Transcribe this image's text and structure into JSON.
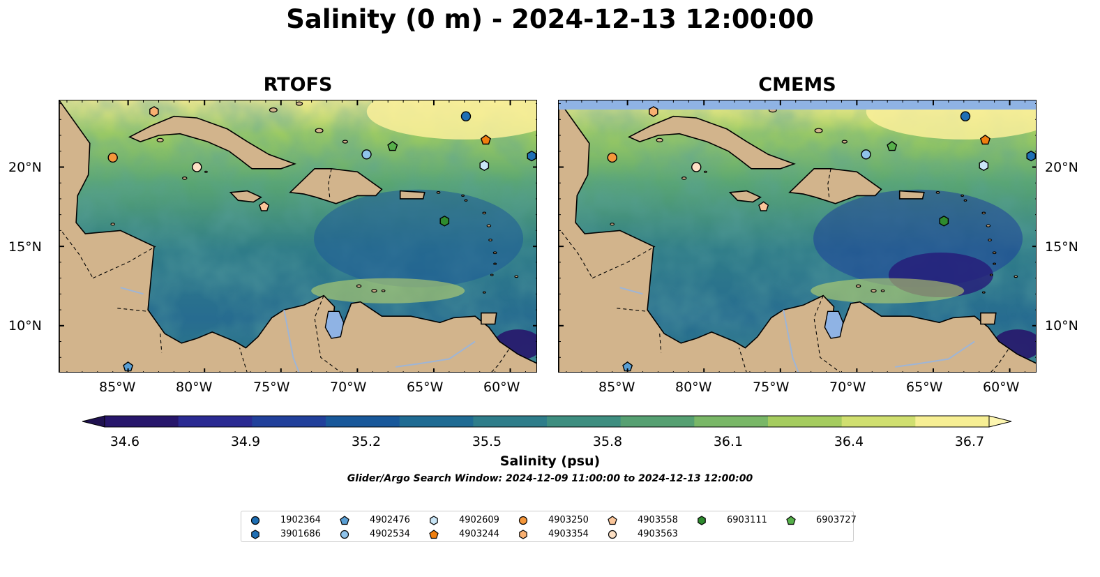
{
  "title": "Salinity (0 m) - 2024-12-13 12:00:00",
  "panels": [
    {
      "title": "RTOFS"
    },
    {
      "title": "CMEMS"
    }
  ],
  "lon_labels": [
    "85°W",
    "80°W",
    "75°W",
    "70°W",
    "65°W",
    "60°W"
  ],
  "lat_labels": [
    "20°N",
    "15°N",
    "10°N"
  ],
  "map_extent": {
    "lon_min": -89.5,
    "lon_max": -58.2,
    "lat_min": 7.0,
    "lat_max": 24.2
  },
  "colorbar": {
    "label": "Salinity (psu)",
    "min": 34.5,
    "max": 36.7,
    "ticks": [
      "34.6",
      "34.9",
      "35.2",
      "35.5",
      "35.8",
      "36.1",
      "36.4",
      "36.7"
    ],
    "colors": [
      "#27166b",
      "#2a2a92",
      "#21409b",
      "#18589a",
      "#1f6b93",
      "#2e7d8a",
      "#3e8e80",
      "#56a072",
      "#79b767",
      "#a5cc5f",
      "#d0df70",
      "#f7ef94"
    ],
    "extend": "both"
  },
  "search_window": "Glider/Argo Search Window: 2024-12-09 11:00:00 to 2024-12-13 12:00:00",
  "colors": {
    "land": "#d2b48c",
    "lake": "#8fb3e4",
    "river": "#9eb5d6",
    "missing": "#8fb3e4"
  },
  "legend": [
    {
      "id": "1902364",
      "marker": "circle",
      "color": "#1f6fb4"
    },
    {
      "id": "3901686",
      "marker": "hexagon",
      "color": "#1f6fb4"
    },
    {
      "id": "4902476",
      "marker": "pentagon",
      "color": "#5a9fd4"
    },
    {
      "id": "4902534",
      "marker": "circle",
      "color": "#8fc3ea"
    },
    {
      "id": "4902609",
      "marker": "hexagon",
      "color": "#c9e6f7"
    },
    {
      "id": "4903244",
      "marker": "pentagon",
      "color": "#f07f0f"
    },
    {
      "id": "4903250",
      "marker": "circle",
      "color": "#f5973b"
    },
    {
      "id": "4903354",
      "marker": "hexagon",
      "color": "#f9b071"
    },
    {
      "id": "4903558",
      "marker": "pentagon",
      "color": "#fbc69a"
    },
    {
      "id": "4903563",
      "marker": "circle",
      "color": "#fde0c4"
    },
    {
      "id": "6903111",
      "marker": "hexagon",
      "color": "#2e8b2e"
    },
    {
      "id": "6903727",
      "marker": "pentagon",
      "color": "#56b04a"
    }
  ],
  "floats": [
    {
      "id": "1902364",
      "lon": -62.9,
      "lat": 23.2
    },
    {
      "id": "3901686",
      "lon": -58.6,
      "lat": 20.7
    },
    {
      "id": "4902476",
      "lon": -85.0,
      "lat": 7.4
    },
    {
      "id": "4902534",
      "lon": -69.4,
      "lat": 20.8
    },
    {
      "id": "4902609",
      "lon": -61.7,
      "lat": 20.1
    },
    {
      "id": "4903244",
      "lon": -61.6,
      "lat": 21.7
    },
    {
      "id": "4903250",
      "lon": -86.0,
      "lat": 20.6
    },
    {
      "id": "4903354",
      "lon": -83.3,
      "lat": 23.5
    },
    {
      "id": "4903558",
      "lon": -76.1,
      "lat": 17.5
    },
    {
      "id": "4903563",
      "lon": -80.5,
      "lat": 20.0
    },
    {
      "id": "6903111",
      "lon": -64.3,
      "lat": 16.6
    },
    {
      "id": "6903727",
      "lon": -67.7,
      "lat": 21.3
    }
  ]
}
